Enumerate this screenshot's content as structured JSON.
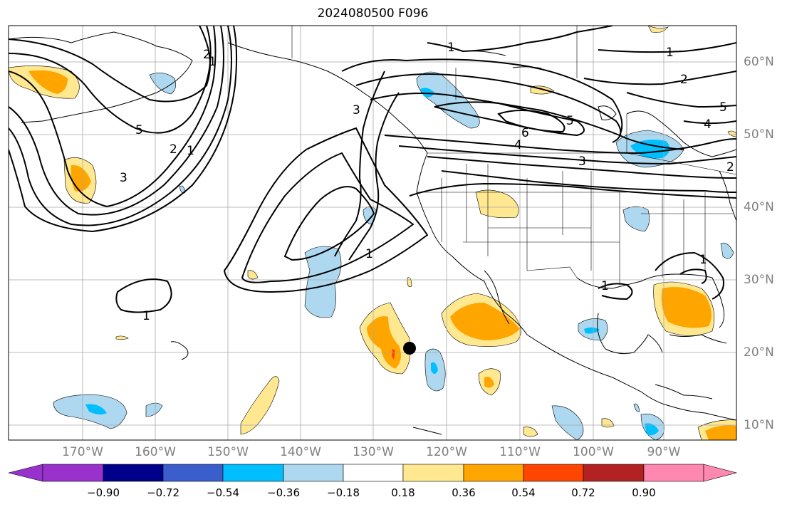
{
  "title": "2024080500 F096",
  "lat_labels": [
    "60°N",
    "50°N",
    "40°N",
    "30°N",
    "20°N",
    "10°N"
  ],
  "lon_labels": [
    "170°W",
    "160°W",
    "150°W",
    "140°W",
    "130°W",
    "120°W",
    "110°W",
    "100°W",
    "90°W"
  ],
  "colorbar": {
    "ticks": [
      "−0.90",
      "−0.72",
      "−0.54",
      "−0.36",
      "−0.18",
      "0.18",
      "0.36",
      "0.54",
      "0.72",
      "0.90"
    ],
    "colors": [
      "#9932cc",
      "#00008b",
      "#3a5fcd",
      "#00bfff",
      "#add8f0",
      "#ffffff",
      "#ffe88f",
      "#ffa500",
      "#ff4500",
      "#b22222",
      "#ff88b0"
    ]
  },
  "contour_labels": [
    "1",
    "1",
    "2",
    "3",
    "4",
    "5",
    "6",
    "5",
    "4",
    "3",
    "2",
    "1",
    "1",
    "1",
    "1",
    "5",
    "2",
    "1",
    "3",
    "2",
    "1"
  ],
  "marker": "storm-center"
}
